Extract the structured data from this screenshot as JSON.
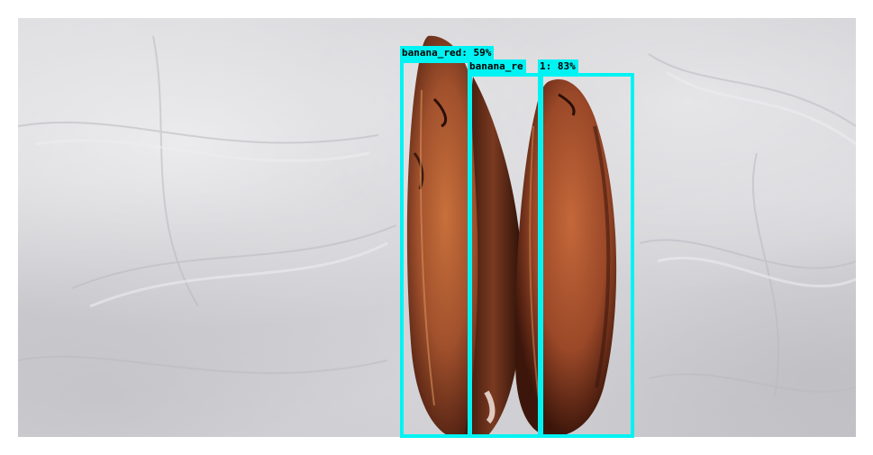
{
  "scene": {
    "background_color": "#d2d2d6",
    "fruit_color": "#a0502c",
    "box_color": "#00f3f3"
  },
  "detections": [
    {
      "label": "banana_red:  59%"
    },
    {
      "label": "banana_re"
    },
    {
      "label": "1:  83%"
    }
  ]
}
